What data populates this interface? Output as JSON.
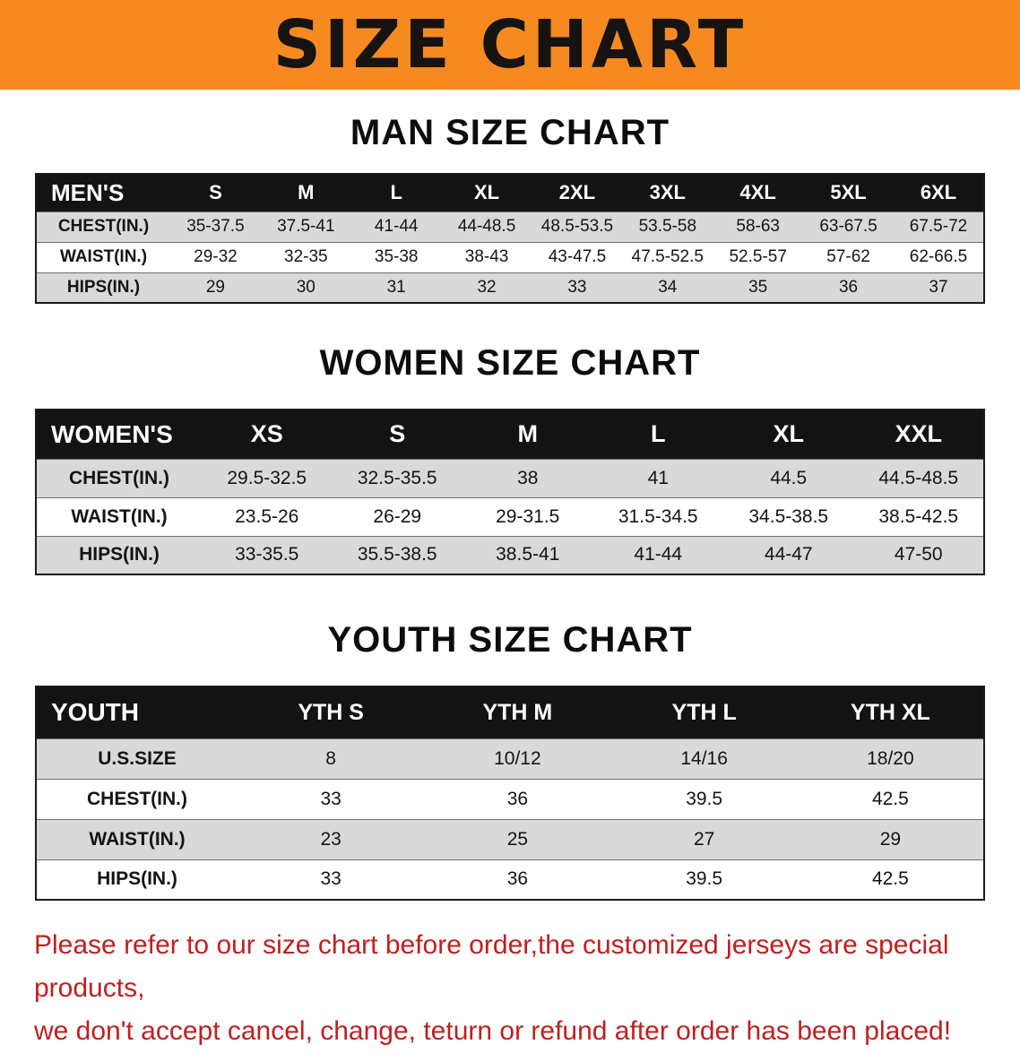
{
  "banner": {
    "title": "SIZE CHART"
  },
  "sections": {
    "men": {
      "heading": "MAN SIZE CHART",
      "table": {
        "corner_label": "MEN'S",
        "columns": [
          "S",
          "M",
          "L",
          "XL",
          "2XL",
          "3XL",
          "4XL",
          "5XL",
          "6XL"
        ],
        "rows": [
          {
            "label": "CHEST(IN.)",
            "values": [
              "35-37.5",
              "37.5-41",
              "41-44",
              "44-48.5",
              "48.5-53.5",
              "53.5-58",
              "58-63",
              "63-67.5",
              "67.5-72"
            ]
          },
          {
            "label": "WAIST(IN.)",
            "values": [
              "29-32",
              "32-35",
              "35-38",
              "38-43",
              "43-47.5",
              "47.5-52.5",
              "52.5-57",
              "57-62",
              "62-66.5"
            ]
          },
          {
            "label": "HIPS(IN.)",
            "values": [
              "29",
              "30",
              "31",
              "32",
              "33",
              "34",
              "35",
              "36",
              "37"
            ]
          }
        ]
      }
    },
    "women": {
      "heading": "WOMEN SIZE CHART",
      "table": {
        "corner_label": "WOMEN'S",
        "columns": [
          "XS",
          "S",
          "M",
          "L",
          "XL",
          "XXL"
        ],
        "rows": [
          {
            "label": "CHEST(IN.)",
            "values": [
              "29.5-32.5",
              "32.5-35.5",
              "38",
              "41",
              "44.5",
              "44.5-48.5"
            ]
          },
          {
            "label": "WAIST(IN.)",
            "values": [
              "23.5-26",
              "26-29",
              "29-31.5",
              "31.5-34.5",
              "34.5-38.5",
              "38.5-42.5"
            ]
          },
          {
            "label": "HIPS(IN.)",
            "values": [
              "33-35.5",
              "35.5-38.5",
              "38.5-41",
              "41-44",
              "44-47",
              "47-50"
            ]
          }
        ]
      }
    },
    "youth": {
      "heading": "YOUTH SIZE CHART",
      "table": {
        "corner_label": "YOUTH",
        "columns": [
          "YTH S",
          "YTH M",
          "YTH L",
          "YTH XL"
        ],
        "rows": [
          {
            "label": "U.S.SIZE",
            "values": [
              "8",
              "10/12",
              "14/16",
              "18/20"
            ]
          },
          {
            "label": "CHEST(IN.)",
            "values": [
              "33",
              "36",
              "39.5",
              "42.5"
            ]
          },
          {
            "label": "WAIST(IN.)",
            "values": [
              "23",
              "25",
              "27",
              "29"
            ]
          },
          {
            "label": "HIPS(IN.)",
            "values": [
              "33",
              "36",
              "39.5",
              "42.5"
            ]
          }
        ]
      }
    }
  },
  "footer": {
    "line1": "Please refer to our size chart before order,the customized jerseys are special products,",
    "line2": "we don't accept cancel, change, teturn or refund after order has been placed!"
  },
  "colors": {
    "banner_orange": "#f68a20",
    "header_black": "#131313",
    "row_gray": "#d9d9d9",
    "note_red": "#c01f1f"
  }
}
